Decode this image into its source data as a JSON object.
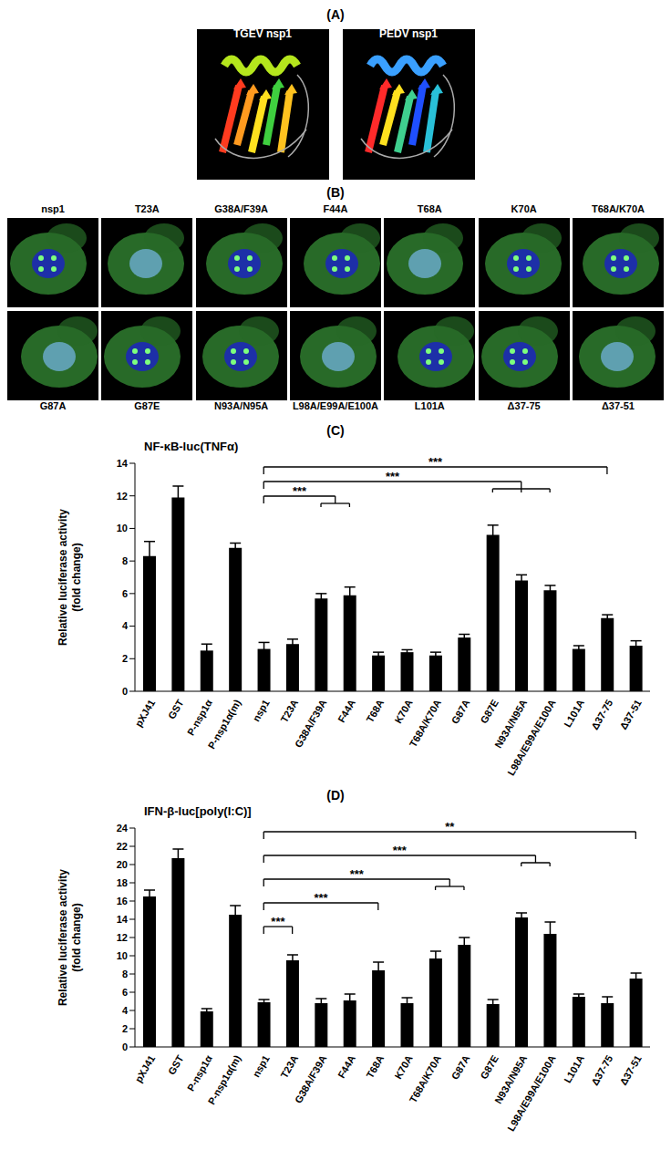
{
  "panels": {
    "A": {
      "panel_label": "(A)",
      "structures": [
        "TGEV nsp1",
        "PEDV nsp1"
      ]
    },
    "B": {
      "panel_label": "(B)",
      "images_top": [
        "nsp1",
        "T23A",
        "G38A/F39A",
        "F44A",
        "T68A",
        "K70A",
        "T68A/K70A"
      ],
      "images_bottom": [
        "G87A",
        "G87E",
        "N93A/N95A",
        "L98A/E99A/E100A",
        "L101A",
        "Δ37-75",
        "Δ37-51"
      ]
    }
  },
  "chart_data": [
    {
      "type": "bar",
      "panel_label": "(C)",
      "title": "NF-κB-luc(TNFα)",
      "y_label": [
        "Relative luciferase activity",
        "(fold change)"
      ],
      "categories": [
        "pXJ41",
        "GST",
        "P-nsp1α",
        "P-nsp1α(m)",
        "nsp1",
        "T23A",
        "G38A/F39A",
        "F44A",
        "T68A",
        "K70A",
        "T68A/K70A",
        "G87A",
        "G87E",
        "N93A/N95A",
        "L98A/E99A/E100A",
        "L101A",
        "Δ37-75",
        "Δ37-51"
      ],
      "values": [
        8.3,
        11.9,
        2.5,
        8.8,
        2.6,
        2.9,
        5.7,
        5.9,
        2.2,
        2.4,
        2.2,
        3.3,
        9.6,
        6.8,
        6.2,
        2.6,
        4.5,
        2.8
      ],
      "errors": [
        0.9,
        0.7,
        0.4,
        0.3,
        0.4,
        0.3,
        0.3,
        0.5,
        0.2,
        0.15,
        0.2,
        0.2,
        0.6,
        0.35,
        0.3,
        0.2,
        0.2,
        0.3
      ],
      "color": "#000000",
      "ylim": [
        0,
        14
      ],
      "yticks": [
        0,
        2,
        4,
        6,
        8,
        10,
        12,
        14
      ],
      "grid": false,
      "annotations": [
        {
          "text": "***",
          "from": "nsp1",
          "to": [
            "G38A/F39A",
            "F44A"
          ]
        },
        {
          "text": "***",
          "from": "nsp1",
          "to": [
            "G87E",
            "N93A/N95A",
            "L98A/E99A/E100A"
          ]
        },
        {
          "text": "***",
          "from": "nsp1",
          "to": [
            "Δ37-75"
          ]
        }
      ]
    },
    {
      "type": "bar",
      "panel_label": "(D)",
      "title": "IFN-β-luc[poly(I:C)]",
      "y_label": [
        "Relative luciferase activity",
        "(fold change)"
      ],
      "categories": [
        "pXJ41",
        "GST",
        "P-nsp1α",
        "P-nsp1α(m)",
        "nsp1",
        "T23A",
        "G38A/F39A",
        "F44A",
        "T68A",
        "K70A",
        "T68A/K70A",
        "G87A",
        "G87E",
        "N93A/N95A",
        "L98A/E99A/E100A",
        "L101A",
        "Δ37-75",
        "Δ37-51"
      ],
      "values": [
        16.5,
        20.7,
        3.9,
        14.5,
        4.9,
        9.5,
        4.8,
        5.1,
        8.4,
        4.8,
        9.7,
        11.2,
        4.7,
        14.2,
        12.4,
        5.5,
        4.8,
        7.5
      ],
      "errors": [
        0.7,
        1.0,
        0.3,
        1.0,
        0.3,
        0.6,
        0.5,
        0.7,
        0.9,
        0.6,
        0.8,
        0.8,
        0.5,
        0.5,
        1.3,
        0.3,
        0.7,
        0.6
      ],
      "color": "#000000",
      "ylim": [
        0,
        24
      ],
      "yticks": [
        0,
        2,
        4,
        6,
        8,
        10,
        12,
        14,
        16,
        18,
        20,
        22,
        24
      ],
      "grid": false,
      "annotations": [
        {
          "text": "***",
          "from": "nsp1",
          "to": [
            "T23A"
          ]
        },
        {
          "text": "***",
          "from": "nsp1",
          "to": [
            "T68A"
          ]
        },
        {
          "text": "***",
          "from": "nsp1",
          "to": [
            "T68A/K70A",
            "G87A"
          ]
        },
        {
          "text": "***",
          "from": "nsp1",
          "to": [
            "N93A/N95A",
            "L98A/E99A/E100A"
          ]
        },
        {
          "text": "**",
          "from": "nsp1",
          "to": [
            "Δ37-51"
          ]
        }
      ]
    }
  ]
}
